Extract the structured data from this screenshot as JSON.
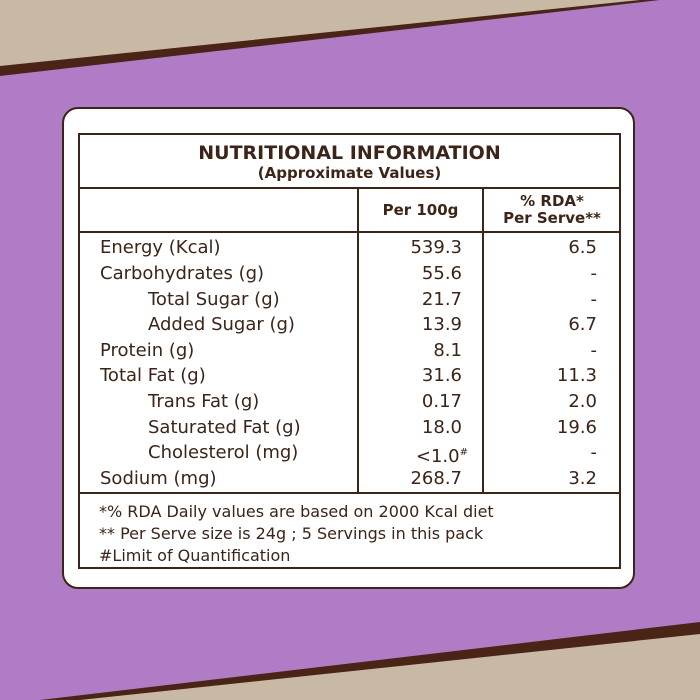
{
  "header": {
    "title": "NUTRITIONAL INFORMATION",
    "subtitle": "(Approximate Values)"
  },
  "table": {
    "columns": [
      "Per 100g",
      [
        "% RDA*",
        "Per Serve**"
      ]
    ],
    "rows": [
      [
        "Energy (Kcal)",
        "539.3",
        "6.5"
      ],
      [
        "Carbohydrates (g)",
        "55.6",
        "-"
      ],
      [
        "Total Sugar (g)",
        "21.7",
        "-"
      ],
      [
        "Added Sugar (g)",
        "13.9",
        "6.7"
      ],
      [
        "Protein (g)",
        "8.1",
        "-"
      ],
      [
        "Total Fat (g)",
        "31.6",
        "11.3"
      ],
      [
        "Trans Fat (g)",
        "0.17",
        "2.0"
      ],
      [
        "Saturated Fat (g)",
        "18.0",
        "19.6"
      ],
      [
        "Cholesterol (mg)",
        {
          "text": "<1.0",
          "sup": "#"
        },
        "-"
      ],
      [
        "Sodium (mg)",
        "268.7",
        "3.2"
      ]
    ]
  },
  "footnotes": [
    "*% RDA Daily values are based on 2000 Kcal diet",
    "** Per Serve size is 24g ; 5 Servings in this pack",
    "#Limit of Quantification"
  ]
}
